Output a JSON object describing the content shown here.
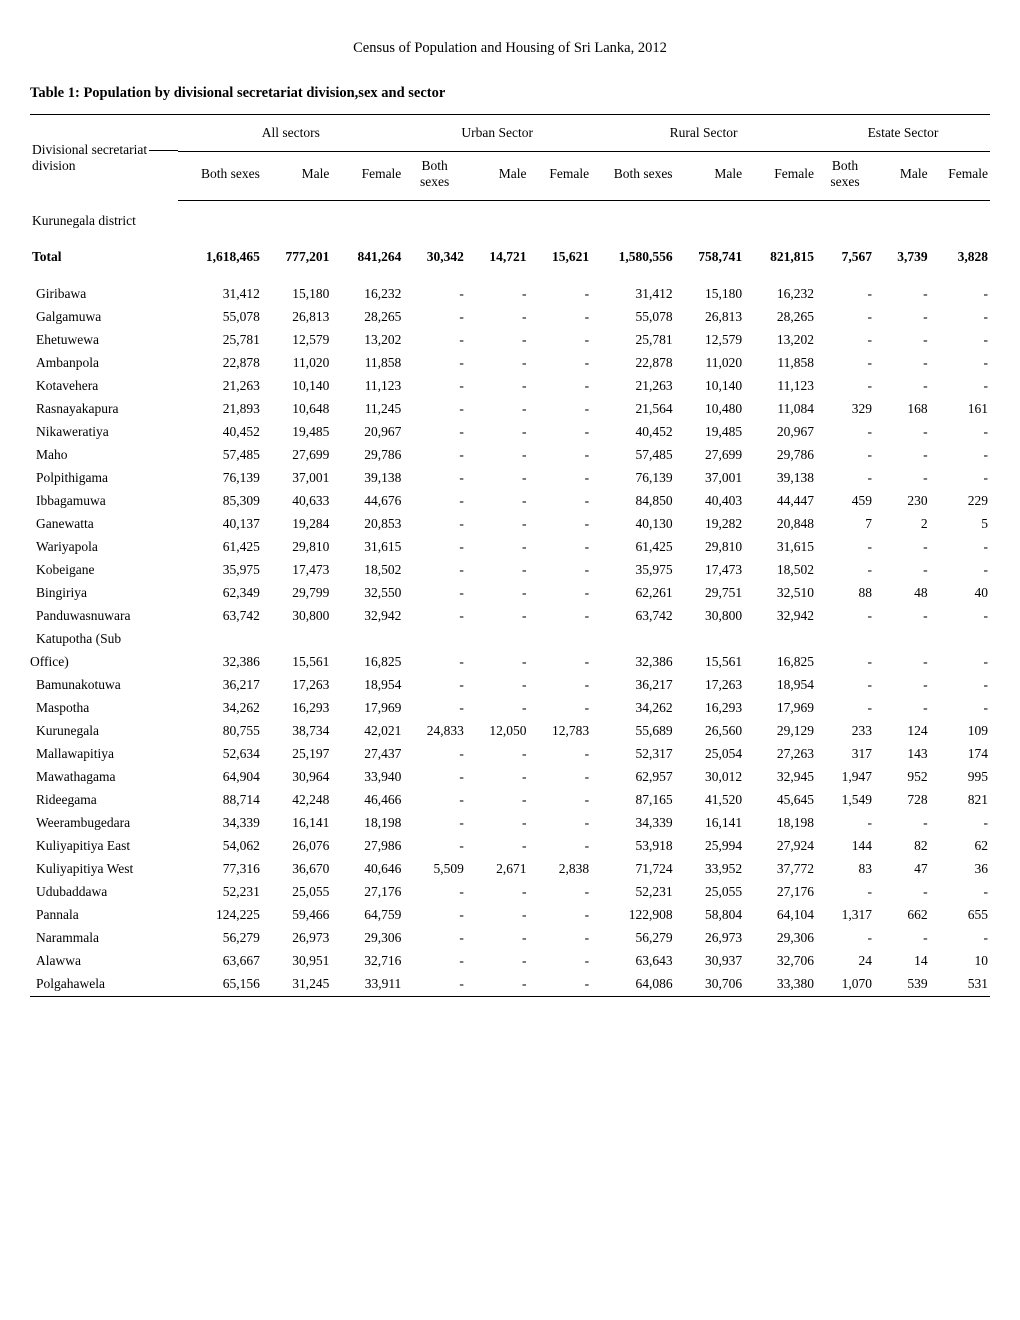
{
  "page": {
    "census_title": "Census of Population and Housing of Sri Lanka, 2012",
    "table_title": "Table 1: Population by divisional secretariat division,sex and sector"
  },
  "headers": {
    "division_label_top": "Divisional secretariat",
    "division_label_bottom": "division",
    "groups": [
      "All sectors",
      "Urban Sector",
      "Rural Sector",
      "Estate Sector"
    ],
    "sub": {
      "both_sexes": "Both sexes",
      "male": "Male",
      "female": "Female",
      "both_sexes_stack_top": "Both",
      "both_sexes_stack_bottom": "sexes"
    }
  },
  "district_label": "Kurunegala district",
  "total_label": "Total",
  "total_row": [
    "1,618,465",
    "777,201",
    "841,264",
    "30,342",
    "14,721",
    "15,621",
    "1,580,556",
    "758,741",
    "821,815",
    "7,567",
    "3,739",
    "3,828"
  ],
  "rows": [
    {
      "name": "Giribawa",
      "v": [
        "31,412",
        "15,180",
        "16,232",
        "-",
        "-",
        "-",
        "31,412",
        "15,180",
        "16,232",
        "-",
        "-",
        "-"
      ]
    },
    {
      "name": "Galgamuwa",
      "v": [
        "55,078",
        "26,813",
        "28,265",
        "-",
        "-",
        "-",
        "55,078",
        "26,813",
        "28,265",
        "-",
        "-",
        "-"
      ]
    },
    {
      "name": "Ehetuwewa",
      "v": [
        "25,781",
        "12,579",
        "13,202",
        "-",
        "-",
        "-",
        "25,781",
        "12,579",
        "13,202",
        "-",
        "-",
        "-"
      ]
    },
    {
      "name": "Ambanpola",
      "v": [
        "22,878",
        "11,020",
        "11,858",
        "-",
        "-",
        "-",
        "22,878",
        "11,020",
        "11,858",
        "-",
        "-",
        "-"
      ]
    },
    {
      "name": "Kotavehera",
      "v": [
        "21,263",
        "10,140",
        "11,123",
        "-",
        "-",
        "-",
        "21,263",
        "10,140",
        "11,123",
        "-",
        "-",
        "-"
      ]
    },
    {
      "name": "Rasnayakapura",
      "v": [
        "21,893",
        "10,648",
        "11,245",
        "-",
        "-",
        "-",
        "21,564",
        "10,480",
        "11,084",
        "329",
        "168",
        "161"
      ]
    },
    {
      "name": "Nikaweratiya",
      "v": [
        "40,452",
        "19,485",
        "20,967",
        "-",
        "-",
        "-",
        "40,452",
        "19,485",
        "20,967",
        "-",
        "-",
        "-"
      ]
    },
    {
      "name": "Maho",
      "v": [
        "57,485",
        "27,699",
        "29,786",
        "-",
        "-",
        "-",
        "57,485",
        "27,699",
        "29,786",
        "-",
        "-",
        "-"
      ]
    },
    {
      "name": "Polpithigama",
      "v": [
        "76,139",
        "37,001",
        "39,138",
        "-",
        "-",
        "-",
        "76,139",
        "37,001",
        "39,138",
        "-",
        "-",
        "-"
      ]
    },
    {
      "name": "Ibbagamuwa",
      "v": [
        "85,309",
        "40,633",
        "44,676",
        "-",
        "-",
        "-",
        "84,850",
        "40,403",
        "44,447",
        "459",
        "230",
        "229"
      ]
    },
    {
      "name": "Ganewatta",
      "v": [
        "40,137",
        "19,284",
        "20,853",
        "-",
        "-",
        "-",
        "40,130",
        "19,282",
        "20,848",
        "7",
        "2",
        "5"
      ]
    },
    {
      "name": "Wariyapola",
      "v": [
        "61,425",
        "29,810",
        "31,615",
        "-",
        "-",
        "-",
        "61,425",
        "29,810",
        "31,615",
        "-",
        "-",
        "-"
      ]
    },
    {
      "name": "Kobeigane",
      "v": [
        "35,975",
        "17,473",
        "18,502",
        "-",
        "-",
        "-",
        "35,975",
        "17,473",
        "18,502",
        "-",
        "-",
        "-"
      ]
    },
    {
      "name": "Bingiriya",
      "v": [
        "62,349",
        "29,799",
        "32,550",
        "-",
        "-",
        "-",
        "62,261",
        "29,751",
        "32,510",
        "88",
        "48",
        "40"
      ]
    },
    {
      "name": "Panduwasnuwara",
      "v": [
        "63,742",
        "30,800",
        "32,942",
        "-",
        "-",
        "-",
        "63,742",
        "30,800",
        "32,942",
        "-",
        "-",
        "-"
      ]
    },
    {
      "name": "Katupotha (Sub",
      "v": [
        "",
        "",
        "",
        "",
        "",
        "",
        "",
        "",
        "",
        "",
        "",
        ""
      ]
    },
    {
      "name": "Office)",
      "v": [
        "32,386",
        "15,561",
        "16,825",
        "-",
        "-",
        "-",
        "32,386",
        "15,561",
        "16,825",
        "-",
        "-",
        "-"
      ],
      "flush": true
    },
    {
      "name": "Bamunakotuwa",
      "v": [
        "36,217",
        "17,263",
        "18,954",
        "-",
        "-",
        "-",
        "36,217",
        "17,263",
        "18,954",
        "-",
        "-",
        "-"
      ]
    },
    {
      "name": "Maspotha",
      "v": [
        "34,262",
        "16,293",
        "17,969",
        "-",
        "-",
        "-",
        "34,262",
        "16,293",
        "17,969",
        "-",
        "-",
        "-"
      ]
    },
    {
      "name": "Kurunegala",
      "v": [
        "80,755",
        "38,734",
        "42,021",
        "24,833",
        "12,050",
        "12,783",
        "55,689",
        "26,560",
        "29,129",
        "233",
        "124",
        "109"
      ]
    },
    {
      "name": "Mallawapitiya",
      "v": [
        "52,634",
        "25,197",
        "27,437",
        "-",
        "-",
        "-",
        "52,317",
        "25,054",
        "27,263",
        "317",
        "143",
        "174"
      ]
    },
    {
      "name": "Mawathagama",
      "v": [
        "64,904",
        "30,964",
        "33,940",
        "-",
        "-",
        "-",
        "62,957",
        "30,012",
        "32,945",
        "1,947",
        "952",
        "995"
      ]
    },
    {
      "name": "Rideegama",
      "v": [
        "88,714",
        "42,248",
        "46,466",
        "-",
        "-",
        "-",
        "87,165",
        "41,520",
        "45,645",
        "1,549",
        "728",
        "821"
      ]
    },
    {
      "name": "Weerambugedara",
      "v": [
        "34,339",
        "16,141",
        "18,198",
        "-",
        "-",
        "-",
        "34,339",
        "16,141",
        "18,198",
        "-",
        "-",
        "-"
      ]
    },
    {
      "name": "Kuliyapitiya East",
      "v": [
        "54,062",
        "26,076",
        "27,986",
        "-",
        "-",
        "-",
        "53,918",
        "25,994",
        "27,924",
        "144",
        "82",
        "62"
      ]
    },
    {
      "name": "Kuliyapitiya West",
      "v": [
        "77,316",
        "36,670",
        "40,646",
        "5,509",
        "2,671",
        "2,838",
        "71,724",
        "33,952",
        "37,772",
        "83",
        "47",
        "36"
      ]
    },
    {
      "name": "Udubaddawa",
      "v": [
        "52,231",
        "25,055",
        "27,176",
        "-",
        "-",
        "-",
        "52,231",
        "25,055",
        "27,176",
        "-",
        "-",
        "-"
      ]
    },
    {
      "name": "Pannala",
      "v": [
        "124,225",
        "59,466",
        "64,759",
        "-",
        "-",
        "-",
        "122,908",
        "58,804",
        "64,104",
        "1,317",
        "662",
        "655"
      ]
    },
    {
      "name": "Narammala",
      "v": [
        "56,279",
        "26,973",
        "29,306",
        "-",
        "-",
        "-",
        "56,279",
        "26,973",
        "29,306",
        "-",
        "-",
        "-"
      ]
    },
    {
      "name": "Alawwa",
      "v": [
        "63,667",
        "30,951",
        "32,716",
        "-",
        "-",
        "-",
        "63,643",
        "30,937",
        "32,706",
        "24",
        "14",
        "10"
      ]
    },
    {
      "name": "Polgahawela",
      "v": [
        "65,156",
        "31,245",
        "33,911",
        "-",
        "-",
        "-",
        "64,086",
        "30,706",
        "33,380",
        "1,070",
        "539",
        "531"
      ]
    }
  ]
}
